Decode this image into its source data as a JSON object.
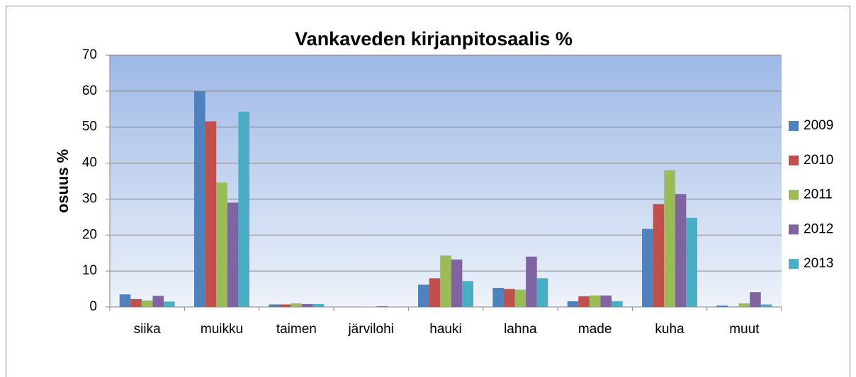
{
  "chart_data": {
    "type": "bar",
    "title": "Vankaveden kirjanpitosaalis %",
    "y_label": "osuus %",
    "categories": [
      "siika",
      "muikku",
      "taimen",
      "järvilohi",
      "hauki",
      "lahna",
      "made",
      "kuha",
      "muut"
    ],
    "series": [
      {
        "name": "2009",
        "color": "#4f81bd",
        "values": [
          3.5,
          60,
          0.7,
          0,
          6.2,
          5.3,
          1.6,
          21.7,
          0.4
        ]
      },
      {
        "name": "2010",
        "color": "#c0504d",
        "values": [
          2.2,
          51.6,
          0.7,
          0,
          8.0,
          5.0,
          3.0,
          28.6,
          0.1
        ]
      },
      {
        "name": "2011",
        "color": "#9bbb59",
        "values": [
          1.8,
          34.6,
          1.0,
          0.1,
          14.3,
          4.8,
          3.2,
          38.0,
          1.0
        ]
      },
      {
        "name": "2012",
        "color": "#8064a2",
        "values": [
          3.1,
          29.0,
          0.8,
          0.2,
          13.2,
          14.0,
          3.2,
          31.4,
          4.1
        ]
      },
      {
        "name": "2013",
        "color": "#4bacc6",
        "values": [
          1.5,
          54.3,
          0.8,
          0.1,
          7.2,
          8.0,
          1.6,
          24.8,
          0.7
        ]
      }
    ],
    "ylim": [
      0,
      70
    ],
    "yticks": [
      0,
      10,
      20,
      30,
      40,
      50,
      60,
      70
    ],
    "grid": true,
    "legend": "right"
  }
}
